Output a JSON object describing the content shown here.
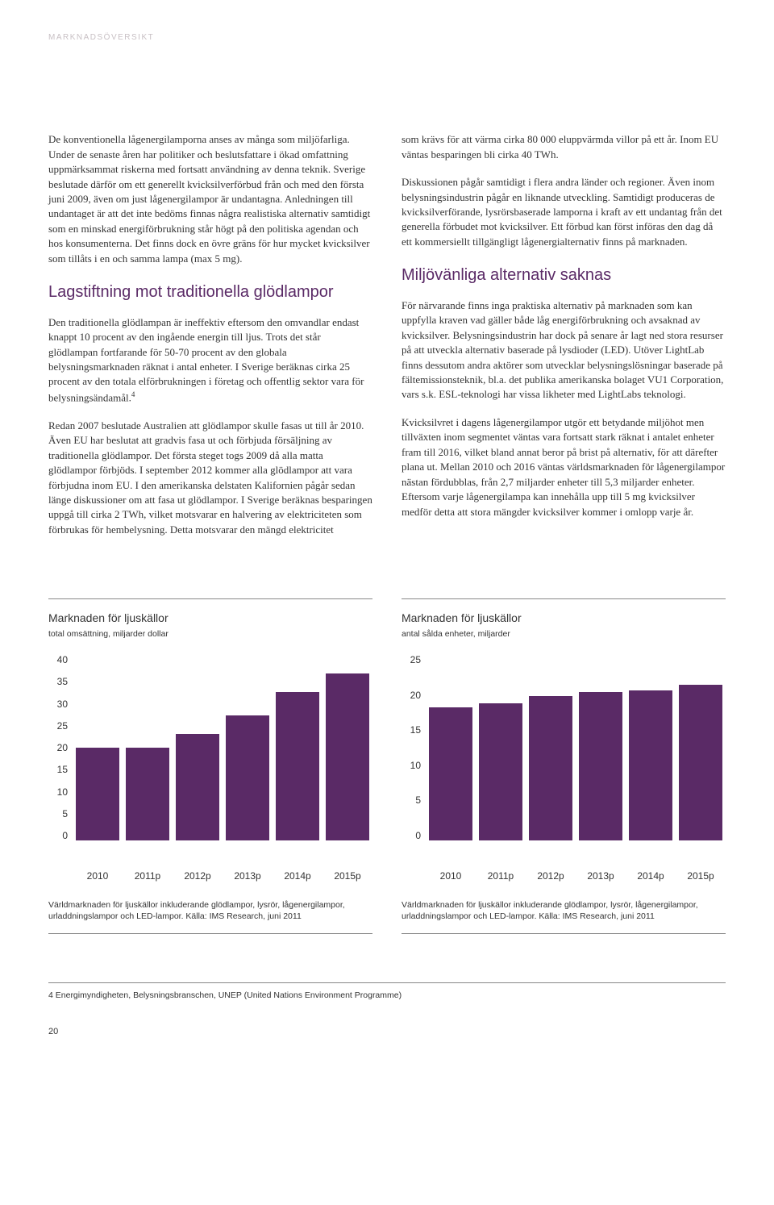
{
  "header_label": "MARKNADSÖVERSIKT",
  "left": {
    "p1": "De konventionella lågenergilamporna anses av många som miljöfarliga. Under de senaste åren har politiker och beslutsfattare i ökad omfattning uppmärksammat riskerna med fortsatt användning av denna teknik. Sverige beslutade därför om ett generellt kvicksilverförbud från och med den första juni 2009, även om just lågenergilampor är undantagna. Anledningen till undantaget är att det inte bedöms finnas några realistiska alternativ samtidigt som en minskad energiförbrukning står högt på den politiska agendan och hos konsumenterna. Det finns dock en övre gräns för hur mycket kvicksilver som tillåts i en och samma lampa (max 5 mg).",
    "h2": "Lagstiftning mot traditionella glödlampor",
    "p2": "Den traditionella glödlampan är ineffektiv eftersom den omvandlar endast knappt 10 procent av den ingående energin till ljus. Trots det står glödlampan fortfarande för 50-70 procent av den globala belysningsmarknaden räknat i antal enheter. I Sverige beräknas cirka 25 procent av den totala elförbrukningen i företag och offentlig sektor vara för belysningsändamål.",
    "p2_sup": "4",
    "p3": "Redan 2007 beslutade Australien att glödlampor skulle fasas ut till år 2010. Även EU har beslutat att gradvis fasa ut och förbjuda försäljning av traditionella glödlampor. Det första steget togs 2009 då alla matta glödlampor förbjöds. I september 2012 kommer alla glödlampor att vara förbjudna inom EU. I den amerikanska delstaten Kalifornien pågår sedan länge diskussioner om att fasa ut glödlampor. I Sverige beräknas besparingen uppgå till cirka 2 TWh, vilket motsvarar en halvering av elektriciteten som förbrukas för hembelysning. Detta motsvarar den mängd elektricitet"
  },
  "right": {
    "p1": "som krävs för att värma cirka 80 000 eluppvärmda villor på ett år. Inom EU väntas besparingen bli cirka 40 TWh.",
    "p2": "Diskussionen pågår samtidigt i flera andra länder och regioner. Även inom belysningsindustrin pågår en liknande utveckling. Samtidigt produceras de kvicksilverförande, lysrörsbaserade lamporna i kraft av ett undantag från det generella förbudet mot kvicksilver. Ett förbud kan först införas den dag då ett kommersiellt tillgängligt lågenergialternativ finns på marknaden.",
    "h2": "Miljövänliga alternativ saknas",
    "p3": "För närvarande finns inga praktiska alternativ på marknaden som kan uppfylla kraven vad gäller både låg energiförbrukning och avsaknad av kvicksilver. Belysningsindustrin har dock på senare år lagt ned stora resurser på att utveckla alternativ baserade på lysdioder (LED). Utöver LightLab finns dessutom andra aktörer som utvecklar belysningslösningar baserade på fältemissionsteknik, bl.a. det publika amerikanska bolaget VU1 Corporation, vars s.k. ESL-teknologi har vissa likheter med LightLabs teknologi.",
    "p4": "Kvicksilvret i dagens lågenergilampor utgör ett betydande miljöhot men tillväxten inom segmentet väntas vara fortsatt stark räknat i antalet enheter fram till 2016, vilket bland annat beror på brist på alternativ, för att därefter plana ut. Mellan 2010 och 2016 väntas världsmarknaden för lågenergilampor nästan fördubblas, från 2,7 miljarder enheter till 5,3 miljarder enheter. Eftersom varje lågenergilampa kan innehålla upp till 5 mg kvicksilver medför detta att stora mängder kvicksilver kommer i omlopp varje år."
  },
  "chart1": {
    "title": "Marknaden för ljuskällor",
    "sub": "total omsättning, miljarder dollar",
    "type": "bar",
    "categories": [
      "2010",
      "2011p",
      "2012p",
      "2013p",
      "2014p",
      "2015p"
    ],
    "values": [
      20,
      20,
      23,
      27,
      32,
      36
    ],
    "y_ticks": [
      40,
      35,
      30,
      25,
      20,
      15,
      10,
      5,
      0
    ],
    "ymax": 40,
    "bar_color": "#5a2a66",
    "background_color": "#ffffff",
    "caption": "Världmarknaden för ljuskällor inkluderande glödlampor, lysrör, lågenergilampor, urladdningslampor och LED-lampor. Källa: IMS Research, juni 2011"
  },
  "chart2": {
    "title": "Marknaden för ljuskällor",
    "sub": "antal sålda enheter, miljarder",
    "type": "bar",
    "categories": [
      "2010",
      "2011p",
      "2012p",
      "2013p",
      "2014p",
      "2015p"
    ],
    "values": [
      18,
      18.5,
      19.5,
      20,
      20.2,
      21
    ],
    "y_ticks": [
      25,
      20,
      15,
      10,
      5,
      0
    ],
    "ymax": 25,
    "bar_color": "#5a2a66",
    "background_color": "#ffffff",
    "caption": "Världmarknaden för ljuskällor inkluderande glödlampor, lysrör, lågenergilampor, urladdningslampor och LED-lampor. Källa: IMS Research, juni 2011"
  },
  "footnote": "4   Energimyndigheten, Belysningsbranschen, UNEP (United Nations Environment Programme)",
  "page_number": "20"
}
